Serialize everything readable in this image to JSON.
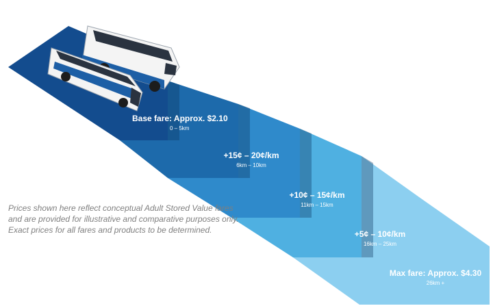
{
  "colors": {
    "tier1": "#134c8e",
    "tier2": "#1d6aab",
    "tier3": "#2f8acb",
    "tier4": "#4fb0e1",
    "tier5": "#8ccff0",
    "shadow": "#0c335f",
    "bus_body": "#f4f4f4",
    "bus_accent": "#1d5fa6"
  },
  "tiers": [
    {
      "title": "Base fare: Approx. $2.10",
      "range": "0 – 5km"
    },
    {
      "title": "+15¢ – 20¢/km",
      "range": "6km – 10km"
    },
    {
      "title": "+10¢ – 15¢/km",
      "range": "11km – 15km"
    },
    {
      "title": "+5¢ – 10¢/km",
      "range": "16km – 25km"
    },
    {
      "title": "Max fare: Approx. $4.30",
      "range": "26km +"
    }
  ],
  "disclaimer": "Prices shown here reflect conceptual Adult Stored Value fares and are provided for illustrative and comparative purposes only. Exact prices for all fares and products to be determined."
}
